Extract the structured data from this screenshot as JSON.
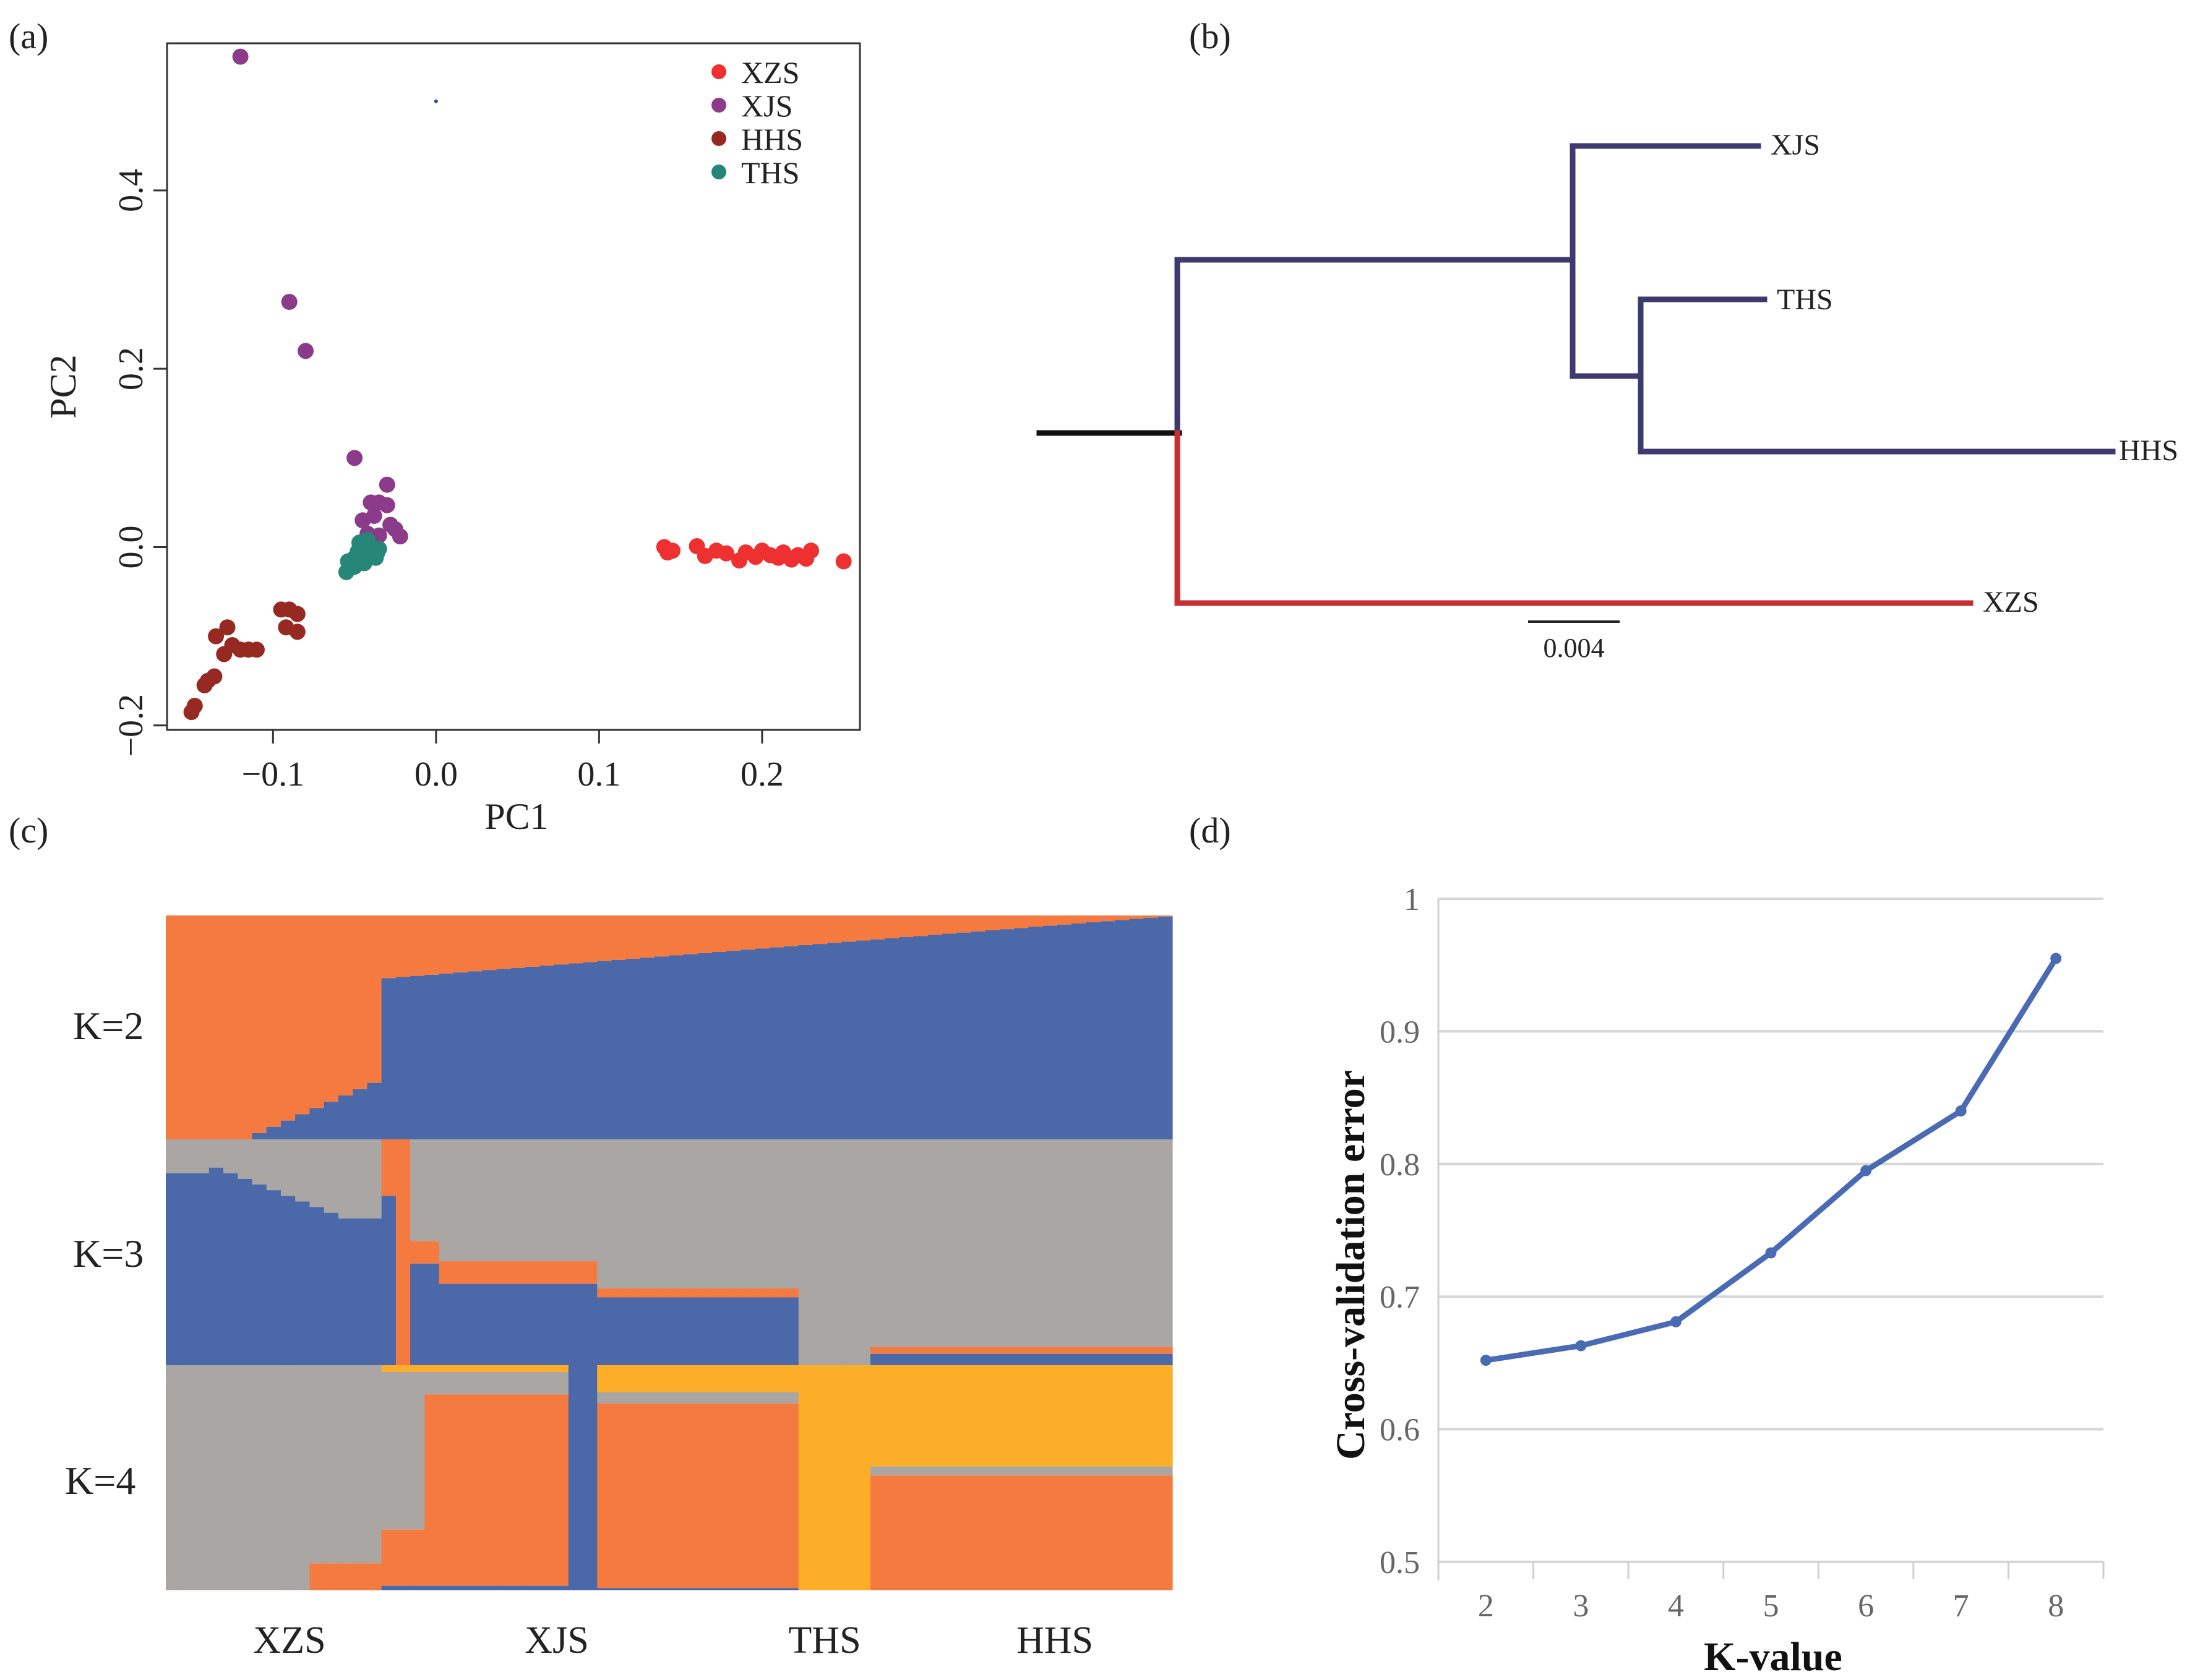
{
  "colors": {
    "XZS": "#ee3030",
    "XJS": "#8c3a8a",
    "HHS": "#962a22",
    "THS": "#268677",
    "orange": "#f47a40",
    "blue": "#4b68a9",
    "gray": "#a9a6a4",
    "yellow": "#fcae28",
    "tree_dark": "#3c3a6e",
    "tree_red": "#c53030",
    "tree_root": "#111111",
    "line_d": "#4a6ab3",
    "grid_d": "#d6d6d6"
  },
  "panel_labels": {
    "a": "(a)",
    "b": "(b)",
    "c": "(c)",
    "d": "(d)"
  },
  "chart_data": [
    {
      "id": "a",
      "type": "scatter",
      "title": "",
      "xlabel": "PC1",
      "ylabel": "PC2",
      "xlim": [
        -0.165,
        0.26
      ],
      "ylim": [
        -0.205,
        0.565
      ],
      "xticks": [
        -0.1,
        0.0,
        0.1,
        0.2
      ],
      "xtick_labels": [
        "−0.1",
        "0.0",
        "0.1",
        "0.2"
      ],
      "yticks": [
        -0.2,
        0.0,
        0.2,
        0.4
      ],
      "ytick_labels": [
        "−0.2",
        "0.0",
        "0.2",
        "0.4"
      ],
      "legend_position": "top-right",
      "series": [
        {
          "name": "XZS",
          "color_key": "XZS",
          "x": [
            0.14,
            0.142,
            0.145,
            0.16,
            0.165,
            0.172,
            0.178,
            0.186,
            0.19,
            0.196,
            0.2,
            0.205,
            0.21,
            0.213,
            0.218,
            0.222,
            0.227,
            0.23,
            0.25
          ],
          "y": [
            0.0,
            -0.006,
            -0.004,
            0.001,
            -0.01,
            -0.004,
            -0.007,
            -0.015,
            -0.006,
            -0.011,
            -0.004,
            -0.009,
            -0.012,
            -0.006,
            -0.014,
            -0.009,
            -0.013,
            -0.004,
            -0.016
          ]
        },
        {
          "name": "XJS",
          "color_key": "XJS",
          "x": [
            -0.12,
            -0.09,
            -0.08,
            -0.05,
            -0.04,
            -0.035,
            -0.03,
            -0.045,
            -0.038,
            -0.03,
            -0.025,
            -0.042,
            -0.028,
            -0.035,
            -0.022
          ],
          "y": [
            0.55,
            0.275,
            0.22,
            0.1,
            0.05,
            0.05,
            0.07,
            0.03,
            0.035,
            0.047,
            0.02,
            0.015,
            0.025,
            0.013,
            0.012
          ]
        },
        {
          "name": "HHS",
          "color_key": "HHS",
          "x": [
            -0.15,
            -0.148,
            -0.14,
            -0.136,
            -0.142,
            -0.135,
            -0.128,
            -0.13,
            -0.125,
            -0.12,
            -0.115,
            -0.11,
            -0.095,
            -0.09,
            -0.085,
            -0.092,
            -0.085
          ],
          "y": [
            -0.185,
            -0.178,
            -0.15,
            -0.145,
            -0.155,
            -0.1,
            -0.09,
            -0.12,
            -0.11,
            -0.115,
            -0.115,
            -0.115,
            -0.07,
            -0.07,
            -0.075,
            -0.09,
            -0.095
          ]
        },
        {
          "name": "THS",
          "color_key": "THS",
          "x": [
            -0.055,
            -0.052,
            -0.05,
            -0.048,
            -0.046,
            -0.045,
            -0.043,
            -0.041,
            -0.039,
            -0.037,
            -0.035,
            -0.05,
            -0.047,
            -0.044,
            -0.04,
            -0.036,
            -0.054,
            -0.042
          ],
          "y": [
            -0.028,
            -0.02,
            -0.012,
            -0.005,
            0.002,
            -0.015,
            -0.008,
            -0.01,
            -0.004,
            -0.012,
            -0.002,
            -0.022,
            0.005,
            -0.018,
            0.0,
            -0.006,
            -0.016,
            0.008
          ]
        }
      ],
      "stray_point": {
        "x": 0.0,
        "y": 0.5
      }
    },
    {
      "id": "b",
      "type": "tree",
      "title": "",
      "tips": [
        "XJS",
        "THS",
        "HHS",
        "XZS"
      ],
      "scale_bar_label": "0.004",
      "scale_bar_length": 0.004
    },
    {
      "id": "c",
      "type": "stacked-bar",
      "title": "",
      "rows": [
        "K=2",
        "K=3",
        "K=4"
      ],
      "populations": [
        "XZS",
        "XJS",
        "THS",
        "HHS"
      ]
    },
    {
      "id": "d",
      "type": "line",
      "title": "",
      "xlabel": "K-value",
      "ylabel": "Cross-validation error",
      "x": [
        2,
        3,
        4,
        5,
        6,
        7,
        8
      ],
      "y": [
        0.652,
        0.663,
        0.681,
        0.733,
        0.795,
        0.84,
        0.955
      ],
      "ylim": [
        0.5,
        1.0
      ],
      "yticks": [
        0.5,
        0.6,
        0.7,
        0.8,
        0.9,
        1.0
      ],
      "ytick_labels": [
        "0.5",
        "0.6",
        "0.7",
        "0.8",
        "0.9",
        "1"
      ],
      "xtick_labels": [
        "2",
        "3",
        "4",
        "5",
        "6",
        "7",
        "8"
      ],
      "grid": true
    }
  ]
}
